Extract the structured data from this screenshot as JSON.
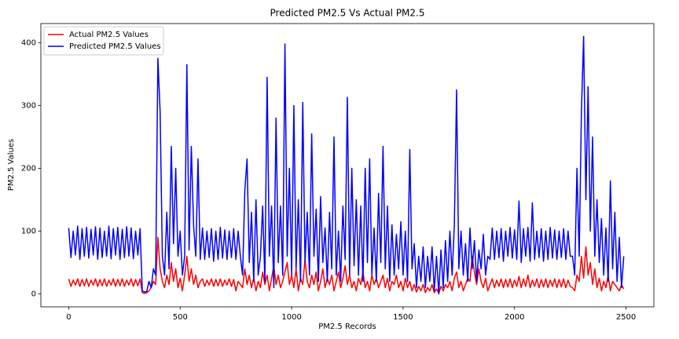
{
  "chart_data": {
    "type": "line",
    "title": "Predicted PM2.5  Vs Actual PM2.5",
    "x_label": "PM2.5 Records",
    "y_label": "PM2.5 Values",
    "legend": "upper left",
    "x": [
      0,
      10,
      20,
      30,
      40,
      50,
      60,
      70,
      80,
      90,
      100,
      110,
      120,
      130,
      140,
      150,
      160,
      170,
      180,
      190,
      200,
      210,
      220,
      230,
      240,
      250,
      260,
      270,
      280,
      290,
      300,
      310,
      320,
      330,
      340,
      350,
      360,
      370,
      380,
      390,
      400,
      410,
      420,
      430,
      440,
      450,
      460,
      470,
      480,
      490,
      500,
      510,
      520,
      530,
      540,
      550,
      560,
      570,
      580,
      590,
      600,
      610,
      620,
      630,
      640,
      650,
      660,
      670,
      680,
      690,
      700,
      710,
      720,
      730,
      740,
      750,
      760,
      770,
      780,
      790,
      800,
      810,
      820,
      830,
      840,
      850,
      860,
      870,
      880,
      890,
      900,
      910,
      920,
      930,
      940,
      950,
      960,
      970,
      980,
      990,
      1000,
      1010,
      1020,
      1030,
      1040,
      1050,
      1060,
      1070,
      1080,
      1090,
      1100,
      1110,
      1120,
      1130,
      1140,
      1150,
      1160,
      1170,
      1180,
      1190,
      1200,
      1210,
      1220,
      1230,
      1240,
      1250,
      1260,
      1270,
      1280,
      1290,
      1300,
      1310,
      1320,
      1330,
      1340,
      1350,
      1360,
      1370,
      1380,
      1390,
      1400,
      1410,
      1420,
      1430,
      1440,
      1450,
      1460,
      1470,
      1480,
      1490,
      1500,
      1510,
      1520,
      1530,
      1540,
      1550,
      1560,
      1570,
      1580,
      1590,
      1600,
      1610,
      1620,
      1630,
      1640,
      1650,
      1660,
      1670,
      1680,
      1690,
      1700,
      1710,
      1720,
      1730,
      1740,
      1750,
      1760,
      1770,
      1780,
      1790,
      1800,
      1810,
      1820,
      1830,
      1840,
      1850,
      1860,
      1870,
      1880,
      1890,
      1900,
      1910,
      1920,
      1930,
      1940,
      1950,
      1960,
      1970,
      1980,
      1990,
      2000,
      2010,
      2020,
      2030,
      2040,
      2050,
      2060,
      2070,
      2080,
      2090,
      2100,
      2110,
      2120,
      2130,
      2140,
      2150,
      2160,
      2170,
      2180,
      2190,
      2200,
      2210,
      2220,
      2230,
      2240,
      2250,
      2260,
      2270,
      2280,
      2290,
      2300,
      2310,
      2320,
      2330,
      2340,
      2350,
      2360,
      2370,
      2380,
      2390,
      2400,
      2410,
      2420,
      2430,
      2440,
      2450,
      2460,
      2470,
      2480,
      2490
    ],
    "series": [
      {
        "name": "Actual PM2.5 Values",
        "color": "#ff0000",
        "values": [
          24,
          12,
          22,
          14,
          24,
          12,
          23,
          13,
          24,
          12,
          22,
          14,
          24,
          12,
          23,
          13,
          24,
          12,
          22,
          14,
          24,
          12,
          23,
          13,
          24,
          12,
          22,
          14,
          24,
          12,
          23,
          13,
          24,
          2,
          1,
          2,
          5,
          10,
          20,
          15,
          90,
          40,
          20,
          10,
          30,
          15,
          50,
          20,
          40,
          10,
          25,
          5,
          30,
          60,
          20,
          40,
          15,
          30,
          10,
          20,
          24,
          12,
          22,
          14,
          24,
          12,
          23,
          13,
          24,
          12,
          22,
          14,
          24,
          12,
          23,
          5,
          20,
          15,
          10,
          40,
          15,
          30,
          10,
          25,
          5,
          20,
          10,
          35,
          15,
          30,
          5,
          25,
          45,
          15,
          30,
          10,
          20,
          35,
          50,
          15,
          30,
          10,
          40,
          5,
          25,
          15,
          55,
          20,
          10,
          30,
          15,
          35,
          5,
          20,
          40,
          10,
          25,
          15,
          30,
          5,
          20,
          35,
          10,
          25,
          45,
          15,
          30,
          10,
          20,
          5,
          25,
          15,
          35,
          10,
          20,
          5,
          30,
          15,
          25,
          10,
          20,
          30,
          10,
          25,
          5,
          20,
          15,
          30,
          10,
          20,
          5,
          25,
          10,
          20,
          5,
          15,
          3,
          12,
          5,
          15,
          2,
          10,
          5,
          15,
          2,
          8,
          1,
          12,
          5,
          15,
          10,
          20,
          5,
          25,
          35,
          10,
          20,
          5,
          15,
          25,
          20,
          60,
          35,
          15,
          40,
          20,
          10,
          25,
          5,
          15,
          24,
          10,
          22,
          12,
          24,
          10,
          23,
          11,
          24,
          10,
          22,
          12,
          28,
          10,
          24,
          12,
          30,
          10,
          22,
          12,
          24,
          10,
          23,
          11,
          24,
          10,
          22,
          12,
          24,
          10,
          23,
          11,
          24,
          10,
          22,
          12,
          10,
          5,
          30,
          20,
          60,
          25,
          75,
          30,
          50,
          15,
          40,
          10,
          25,
          5,
          20,
          10,
          30,
          5,
          20,
          15,
          10,
          5,
          15,
          8
        ]
      },
      {
        "name": "Predicted PM2.5 Values",
        "color": "#0000ff",
        "values": [
          105,
          58,
          100,
          62,
          108,
          55,
          104,
          60,
          106,
          57,
          103,
          62,
          107,
          55,
          105,
          58,
          100,
          60,
          108,
          56,
          104,
          62,
          106,
          55,
          103,
          58,
          107,
          60,
          105,
          56,
          100,
          62,
          104,
          5,
          3,
          4,
          20,
          10,
          40,
          30,
          375,
          290,
          60,
          30,
          130,
          40,
          235,
          80,
          200,
          60,
          100,
          30,
          60,
          365,
          70,
          235,
          110,
          60,
          215,
          55,
          105,
          55,
          100,
          58,
          104,
          52,
          100,
          55,
          106,
          57,
          102,
          55,
          100,
          58,
          104,
          55,
          100,
          60,
          30,
          165,
          215,
          50,
          130,
          20,
          150,
          30,
          60,
          140,
          20,
          345,
          60,
          140,
          10,
          280,
          50,
          140,
          30,
          398,
          60,
          200,
          30,
          300,
          40,
          150,
          20,
          305,
          50,
          130,
          30,
          255,
          60,
          135,
          20,
          155,
          50,
          105,
          20,
          130,
          40,
          250,
          30,
          100,
          20,
          140,
          55,
          313,
          30,
          200,
          45,
          150,
          30,
          140,
          20,
          200,
          50,
          215,
          30,
          105,
          20,
          160,
          50,
          235,
          40,
          140,
          20,
          110,
          30,
          95,
          40,
          115,
          30,
          100,
          20,
          230,
          40,
          80,
          10,
          60,
          20,
          75,
          10,
          60,
          20,
          75,
          5,
          60,
          0,
          70,
          10,
          85,
          20,
          100,
          30,
          110,
          325,
          40,
          100,
          30,
          80,
          20,
          105,
          40,
          85,
          20,
          70,
          40,
          95,
          30,
          60,
          55,
          105,
          55,
          100,
          58,
          104,
          52,
          100,
          60,
          106,
          57,
          102,
          55,
          148,
          50,
          104,
          60,
          106,
          52,
          145,
          55,
          100,
          58,
          104,
          52,
          100,
          55,
          106,
          57,
          102,
          55,
          100,
          58,
          104,
          55,
          100,
          60,
          60,
          30,
          200,
          60,
          290,
          410,
          150,
          330,
          100,
          250,
          60,
          150,
          50,
          120,
          30,
          105,
          20,
          180,
          40,
          130,
          20,
          90,
          10,
          60
        ]
      }
    ],
    "xlim": [
      -125,
      2625
    ],
    "ylim": [
      -20.5,
      430.5
    ],
    "xticks": [
      0,
      500,
      1000,
      1500,
      2000,
      2500
    ],
    "yticks": [
      0,
      100,
      200,
      300,
      400
    ]
  }
}
